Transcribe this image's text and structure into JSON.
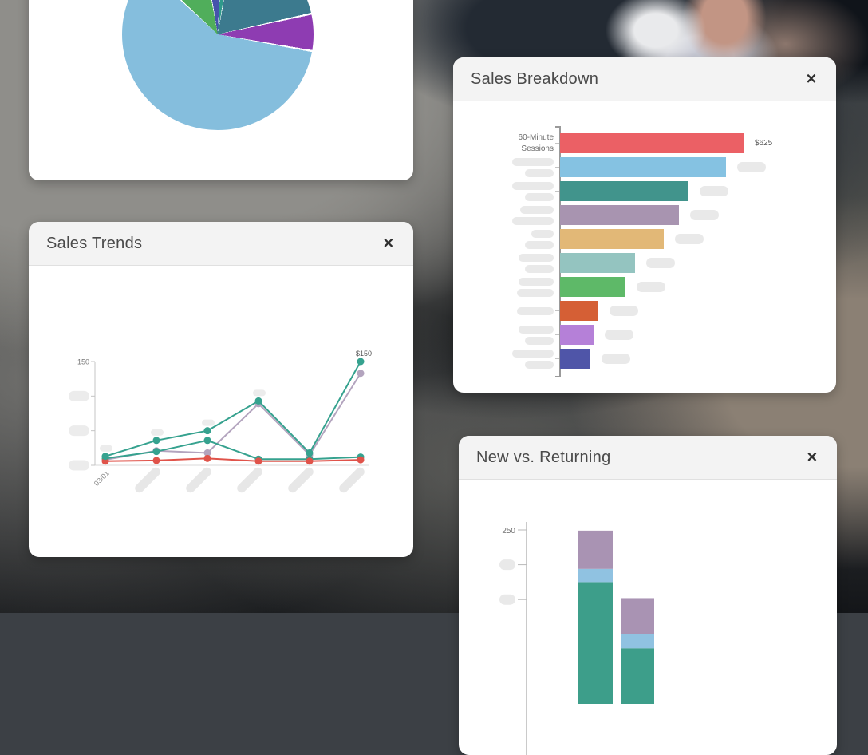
{
  "ui": {
    "close": "✕"
  },
  "cards": {
    "pie": {
      "chart_data": {
        "type": "pie",
        "start_deg": -10.5,
        "slices": [
          {
            "name": "indigo-slice",
            "deg": 12.5,
            "color": "#4553ac"
          },
          {
            "name": "teal-slice",
            "deg": 7,
            "color": "#2f9a8b"
          },
          {
            "name": "slate-teal-slice",
            "deg": 68,
            "color": "#3c7a8e"
          },
          {
            "name": "purple-slice",
            "deg": 22.5,
            "color": "#8e3cb2"
          },
          {
            "name": "light-blue-slice",
            "deg": 212.7,
            "color": "#85bedd"
          },
          {
            "name": "green-slice",
            "deg": 37.3,
            "color": "#50ae5b"
          }
        ]
      }
    },
    "sales_breakdown": {
      "title": "Sales Breakdown",
      "chart_data": {
        "type": "bar",
        "orientation": "horizontal",
        "max": 625,
        "bars": [
          {
            "label_lines": [
              "60-Minute",
              "Sessions"
            ],
            "value": 625,
            "value_label": "$625",
            "color": "#eb6065",
            "label_pills": null,
            "value_pill": null
          },
          {
            "label_lines": null,
            "value": 565,
            "value_label": null,
            "color": "#85c2e2",
            "label_pills": [
              52,
              36
            ],
            "value_pill": 36
          },
          {
            "label_lines": null,
            "value": 437,
            "value_label": null,
            "color": "#41948c",
            "label_pills": [
              52,
              36
            ],
            "value_pill": 36
          },
          {
            "label_lines": null,
            "value": 405,
            "value_label": null,
            "color": "#a894b0",
            "label_pills": [
              42,
              52
            ],
            "value_pill": 36
          },
          {
            "label_lines": null,
            "value": 353,
            "value_label": null,
            "color": "#e2b877",
            "label_pills": [
              28,
              36
            ],
            "value_pill": 36
          },
          {
            "label_lines": null,
            "value": 255,
            "value_label": null,
            "color": "#94c4c0",
            "label_pills": [
              44,
              36
            ],
            "value_pill": 36
          },
          {
            "label_lines": null,
            "value": 223,
            "value_label": null,
            "color": "#5eb968",
            "label_pills": [
              44,
              46
            ],
            "value_pill": 36
          },
          {
            "label_lines": null,
            "value": 130,
            "value_label": null,
            "color": "#d55f35",
            "label_pills": [
              46
            ],
            "value_pill": 36
          },
          {
            "label_lines": null,
            "value": 114,
            "value_label": null,
            "color": "#b580d8",
            "label_pills": [
              44,
              36
            ],
            "value_pill": 36
          },
          {
            "label_lines": null,
            "value": 103,
            "value_label": null,
            "color": "#4f55a8",
            "label_pills": [
              52,
              36
            ],
            "value_pill": 36
          }
        ]
      }
    },
    "sales_trends": {
      "title": "Sales Trends",
      "chart_data": {
        "type": "line",
        "ylim": [
          0,
          150
        ],
        "y_ticks": [
          {
            "v": 0,
            "label": null
          },
          {
            "v": 50,
            "label": null
          },
          {
            "v": 100,
            "label": null
          },
          {
            "v": 150,
            "label": "150"
          }
        ],
        "x_labels": [
          "03/01",
          null,
          null,
          null,
          null,
          null
        ],
        "series": [
          {
            "name": "series-teal-a",
            "color": "#36a28f",
            "values": [
              13,
              36,
              50,
              93,
              18,
              150
            ],
            "last_point_label": "$150"
          },
          {
            "name": "series-teal-b",
            "color": "#36a28f",
            "values": [
              10,
              20,
              36,
              9,
              9,
              12
            ]
          },
          {
            "name": "series-purple",
            "color": "#b3a4be",
            "values": [
              8,
              21,
              18,
              89,
              15,
              133
            ]
          },
          {
            "name": "series-red",
            "color": "#e0534a",
            "values": [
              6,
              7,
              10,
              6,
              6,
              8
            ]
          }
        ],
        "point_label_placeholders": [
          0,
          1,
          2,
          3
        ]
      }
    },
    "new_vs_returning": {
      "title": "New vs. Returning",
      "chart_data": {
        "type": "stacked-bar",
        "ylim": [
          0,
          250
        ],
        "y_ticks": [
          {
            "v": 150,
            "label": null
          },
          {
            "v": 200,
            "label": null
          },
          {
            "v": 250,
            "label": "250"
          }
        ],
        "bars": [
          {
            "segments": [
              {
                "color": "#3d9e8a",
                "value": 175
              },
              {
                "color": "#90c2e1",
                "value": 19
              },
              {
                "color": "#a993b3",
                "value": 55
              }
            ]
          },
          {
            "segments": [
              {
                "color": "#3d9e8a",
                "value": 80
              },
              {
                "color": "#90c2e1",
                "value": 20
              },
              {
                "color": "#a993b3",
                "value": 52
              }
            ]
          }
        ]
      }
    }
  }
}
